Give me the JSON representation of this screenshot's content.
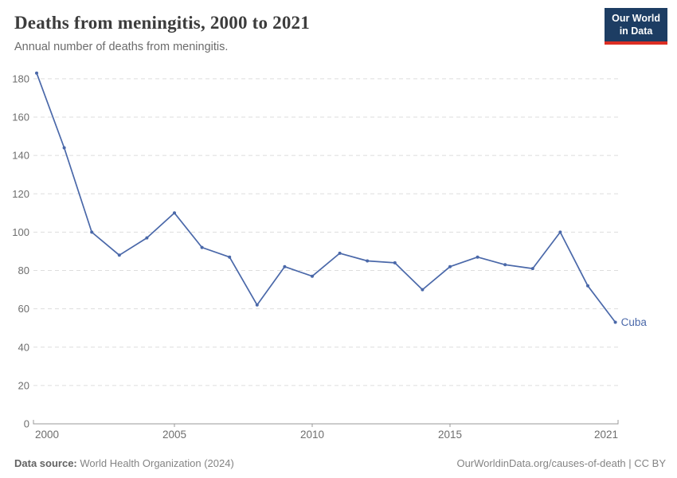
{
  "header": {
    "title": "Deaths from meningitis, 2000 to 2021",
    "subtitle": "Annual number of deaths from meningitis.",
    "logo": {
      "line1": "Our World",
      "line2": "in Data"
    }
  },
  "chart_data": {
    "type": "line",
    "title": "Deaths from meningitis, 2000 to 2021",
    "subtitle": "Annual number of deaths from meningitis.",
    "x": [
      2000,
      2001,
      2002,
      2003,
      2004,
      2005,
      2006,
      2007,
      2008,
      2009,
      2010,
      2011,
      2012,
      2013,
      2014,
      2015,
      2016,
      2017,
      2018,
      2019,
      2020,
      2021
    ],
    "series": [
      {
        "name": "Cuba",
        "color": "#4a68a9",
        "values": [
          183,
          144,
          100,
          88,
          97,
          110,
          92,
          87,
          62,
          82,
          77,
          89,
          85,
          84,
          70,
          82,
          87,
          83,
          81,
          100,
          72,
          53
        ]
      }
    ],
    "xticks": [
      2000,
      2005,
      2010,
      2015,
      2021
    ],
    "yticks": [
      0,
      20,
      40,
      60,
      80,
      100,
      120,
      140,
      160,
      180
    ],
    "ylim": [
      0,
      185
    ],
    "xlabel": "",
    "ylabel": "",
    "grid": "horizontal-dashed",
    "legend": "end-of-line-label",
    "end_label": "Cuba"
  },
  "footer": {
    "source_label": "Data source:",
    "source_value": "World Health Organization (2024)",
    "credit": "OurWorldinData.org/causes-of-death | CC BY"
  },
  "colors": {
    "line": "#4a68a9",
    "logo_bg": "#1d3d63",
    "logo_accent": "#dc2e23",
    "grid": "#dddddd",
    "axis": "#999999",
    "tick_text": "#6e6e6e",
    "title_text": "#3c3c3c",
    "subtitle_text": "#6b6b6b",
    "footer_text": "#848484",
    "footer_label_text": "#636363"
  }
}
